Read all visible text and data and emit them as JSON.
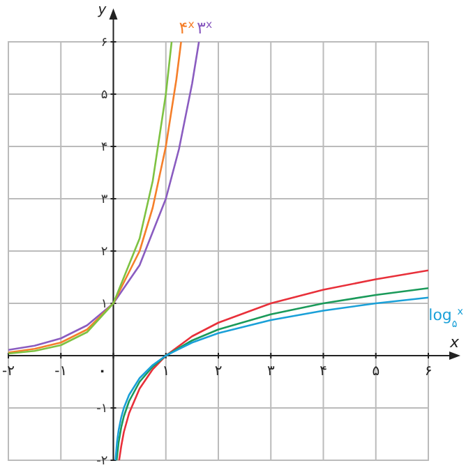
{
  "chart_data": {
    "type": "line",
    "xlabel": "x",
    "ylabel": "y",
    "xlim": [
      -2,
      6
    ],
    "ylim": [
      -2,
      6
    ],
    "xticks": [
      {
        "value": -2,
        "label": "-۲"
      },
      {
        "value": -1,
        "label": "-۱"
      },
      {
        "value": 0,
        "label": "۰"
      },
      {
        "value": 1,
        "label": "۱"
      },
      {
        "value": 2,
        "label": "۲"
      },
      {
        "value": 3,
        "label": "۳"
      },
      {
        "value": 4,
        "label": "۴"
      },
      {
        "value": 5,
        "label": "۵"
      },
      {
        "value": 6,
        "label": "۶"
      }
    ],
    "yticks": [
      {
        "value": -2,
        "label": "-۲"
      },
      {
        "value": -1,
        "label": "-۱"
      },
      {
        "value": 1,
        "label": "۱"
      },
      {
        "value": 2,
        "label": "۲"
      },
      {
        "value": 3,
        "label": "۳"
      },
      {
        "value": 4,
        "label": "۴"
      },
      {
        "value": 5,
        "label": "۵"
      },
      {
        "value": 6,
        "label": "۶"
      }
    ],
    "grid": true,
    "marker": "none",
    "line_style": "solid",
    "series": [
      {
        "name": "۳$^{x}$",
        "color": "#8a5cc0",
        "x": [
          -2,
          -1.5,
          -1,
          -0.5,
          0,
          0.5,
          1,
          1.25,
          1.5,
          1.63
        ],
        "values": [
          0.11,
          0.19,
          0.33,
          0.58,
          1,
          1.73,
          3,
          3.95,
          5.2,
          6
        ]
      },
      {
        "name": "۴$^{x}$",
        "color": "#f57f2a",
        "x": [
          -2,
          -1.5,
          -1,
          -0.5,
          0,
          0.5,
          0.75,
          1,
          1.2,
          1.29
        ],
        "values": [
          0.06,
          0.13,
          0.25,
          0.5,
          1,
          2,
          2.83,
          4,
          5.28,
          6
        ]
      },
      {
        "color": "#7ec242",
        "x": [
          -2,
          -1.5,
          -1,
          -0.5,
          0,
          0.5,
          0.75,
          1,
          1.11
        ],
        "values": [
          0.04,
          0.09,
          0.2,
          0.45,
          1,
          2.24,
          3.34,
          5,
          6
        ]
      },
      {
        "color": "#e8303a",
        "x": [
          0.11,
          0.15,
          0.2,
          0.3,
          0.5,
          0.75,
          1,
          1.5,
          2,
          3,
          4,
          5,
          6
        ],
        "values": [
          -2,
          -1.73,
          -1.46,
          -1.1,
          -0.63,
          -0.26,
          0,
          0.37,
          0.63,
          1,
          1.26,
          1.46,
          1.63
        ]
      },
      {
        "color": "#1a9a5a",
        "x": [
          0.0625,
          0.1,
          0.15,
          0.2,
          0.3,
          0.5,
          0.75,
          1,
          1.5,
          2,
          3,
          4,
          5,
          6
        ],
        "values": [
          -2,
          -1.66,
          -1.37,
          -1.16,
          -0.87,
          -0.5,
          -0.21,
          0,
          0.29,
          0.5,
          0.79,
          1,
          1.16,
          1.29
        ]
      },
      {
        "name": "log$_{۵}$$^{x}$",
        "color": "#1aa0d8",
        "x": [
          0.04,
          0.07,
          0.1,
          0.15,
          0.2,
          0.3,
          0.5,
          0.75,
          1,
          1.5,
          2,
          3,
          4,
          5,
          6
        ],
        "values": [
          -2,
          -1.65,
          -1.43,
          -1.18,
          -1,
          -0.75,
          -0.43,
          -0.18,
          0,
          0.25,
          0.43,
          0.68,
          0.86,
          1,
          1.11
        ]
      }
    ]
  }
}
